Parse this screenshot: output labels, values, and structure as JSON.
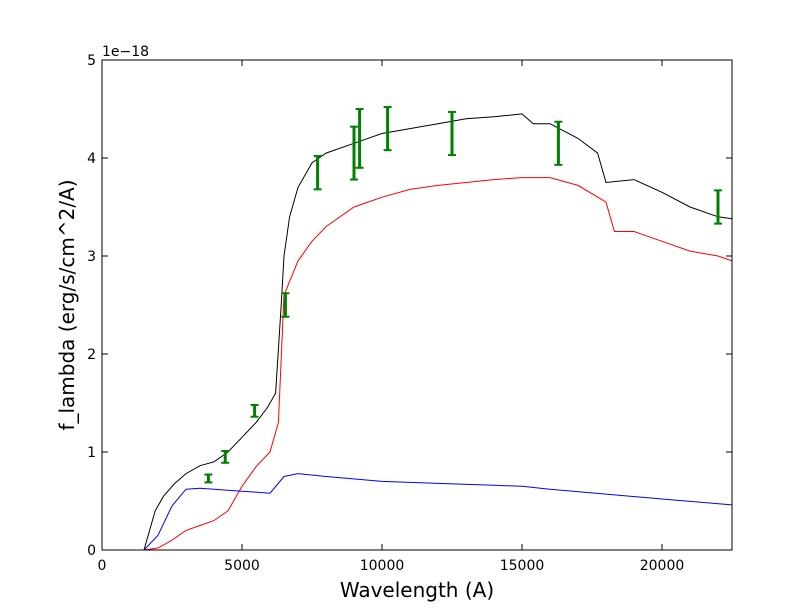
{
  "chart_data": {
    "type": "line",
    "title": "",
    "xlabel": "Wavelength (A)",
    "ylabel": "f_lambda (erg/s/cm^2/A)",
    "offset_text": "1e−18",
    "xlim": [
      0,
      22500
    ],
    "ylim": [
      0,
      5
    ],
    "x_ticks": [
      0,
      5000,
      10000,
      15000,
      20000
    ],
    "x_tick_labels": [
      "0",
      "5000",
      "10000",
      "15000",
      "20000"
    ],
    "y_ticks": [
      0,
      1,
      2,
      3,
      4,
      5
    ],
    "y_tick_labels": [
      "0",
      "1",
      "2",
      "3",
      "4",
      "5"
    ],
    "grid": false,
    "series": [
      {
        "color": "#000000",
        "x": [
          0,
          1500,
          1700,
          1900,
          2200,
          2600,
          3000,
          3500,
          4000,
          4500,
          5000,
          5500,
          5900,
          6200,
          6400,
          6500,
          6700,
          7000,
          7500,
          8000,
          9000,
          10000,
          11000,
          12000,
          13000,
          14000,
          15000,
          15400,
          16000,
          17000,
          17700,
          18000,
          19000,
          20000,
          21000,
          22000,
          22500
        ],
        "values": [
          0.0,
          0.0,
          0.2,
          0.4,
          0.55,
          0.68,
          0.78,
          0.86,
          0.9,
          1.0,
          1.15,
          1.3,
          1.45,
          1.6,
          2.5,
          3.0,
          3.4,
          3.7,
          3.95,
          4.05,
          4.15,
          4.25,
          4.3,
          4.35,
          4.4,
          4.42,
          4.45,
          4.35,
          4.35,
          4.2,
          4.05,
          3.75,
          3.78,
          3.65,
          3.5,
          3.4,
          3.38
        ]
      },
      {
        "color": "#ff0000",
        "x": [
          0,
          1500,
          2000,
          2500,
          3000,
          3500,
          4000,
          4500,
          5000,
          5500,
          6000,
          6300,
          6500,
          7000,
          7500,
          8000,
          9000,
          10000,
          11000,
          12000,
          13000,
          14000,
          15000,
          16000,
          17000,
          18000,
          18300,
          19000,
          20000,
          21000,
          22000,
          22500
        ],
        "values": [
          0.0,
          0.0,
          0.02,
          0.1,
          0.2,
          0.25,
          0.3,
          0.4,
          0.65,
          0.85,
          1.0,
          1.3,
          2.6,
          2.95,
          3.15,
          3.3,
          3.5,
          3.6,
          3.68,
          3.72,
          3.75,
          3.78,
          3.8,
          3.8,
          3.72,
          3.55,
          3.25,
          3.25,
          3.15,
          3.05,
          3.0,
          2.95
        ]
      },
      {
        "color": "#0000ff",
        "x": [
          0,
          1500,
          2000,
          2500,
          3000,
          3500,
          4000,
          5000,
          6000,
          6500,
          7000,
          8000,
          10000,
          12000,
          14000,
          15000,
          16000,
          18000,
          20000,
          22500
        ],
        "values": [
          0.0,
          0.0,
          0.15,
          0.45,
          0.62,
          0.63,
          0.62,
          0.6,
          0.58,
          0.75,
          0.78,
          0.75,
          0.7,
          0.68,
          0.66,
          0.65,
          0.62,
          0.57,
          0.52,
          0.46
        ]
      }
    ],
    "error_bars": {
      "color": "#008000",
      "points": [
        {
          "x": 3800,
          "y": 0.73,
          "err": 0.04
        },
        {
          "x": 4400,
          "y": 0.95,
          "err": 0.06
        },
        {
          "x": 5450,
          "y": 1.42,
          "err": 0.06
        },
        {
          "x": 6550,
          "y": 2.5,
          "err": 0.12
        },
        {
          "x": 7700,
          "y": 3.85,
          "err": 0.17
        },
        {
          "x": 9000,
          "y": 4.05,
          "err": 0.27
        },
        {
          "x": 9200,
          "y": 4.2,
          "err": 0.3
        },
        {
          "x": 10200,
          "y": 4.3,
          "err": 0.22
        },
        {
          "x": 12500,
          "y": 4.25,
          "err": 0.22
        },
        {
          "x": 16300,
          "y": 4.15,
          "err": 0.22
        },
        {
          "x": 22000,
          "y": 3.5,
          "err": 0.17
        }
      ]
    }
  }
}
